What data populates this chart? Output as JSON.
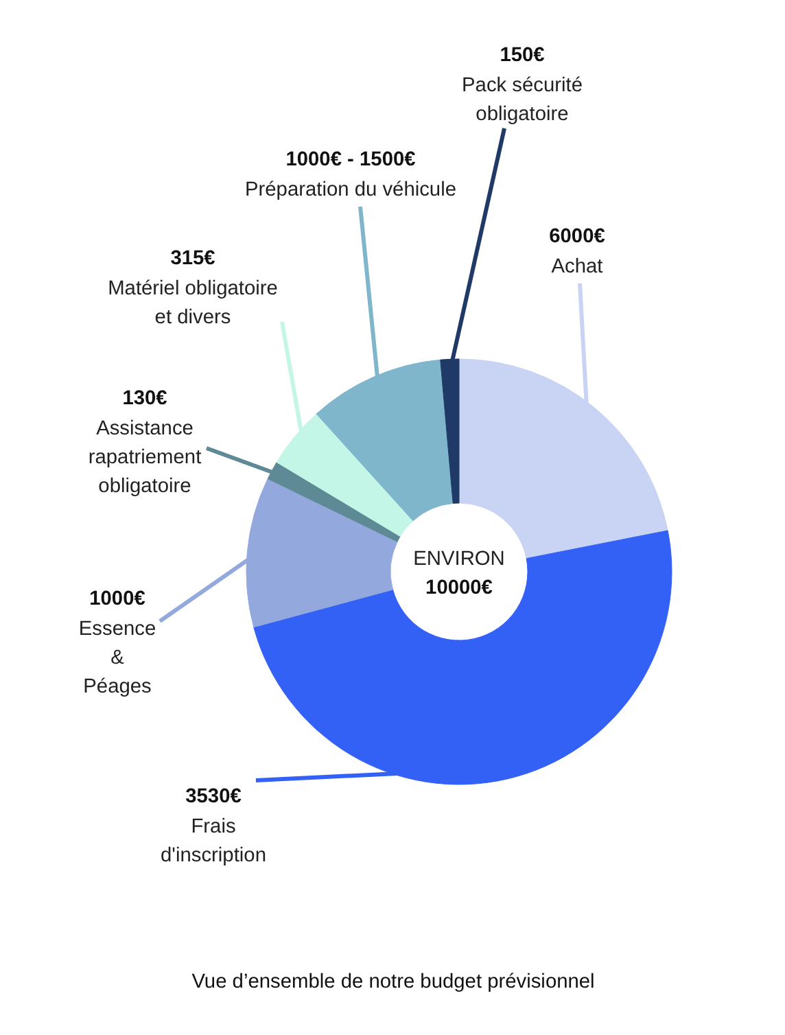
{
  "chart_data": {
    "type": "donut",
    "categories": [
      "6000€ Achat",
      "3530€ Frais d'inscription",
      "1000€ Essence & Péages",
      "130€ Assistance rapatriement obligatoire",
      "315€ Matériel obligatoire et divers",
      "1000€ - 1500€ Préparation du véhicule",
      "150€ Pack sécurité obligatoire"
    ],
    "values": [
      21.9,
      48.9,
      11.4,
      1.4,
      4.7,
      10.3,
      1.4
    ],
    "colors": [
      "#c9d3f3",
      "#3461f5",
      "#93a8dc",
      "#5e8a96",
      "#c4f6e8",
      "#7fb6cc",
      "#1f3a66"
    ],
    "annotations": [
      "ENVIRON 10000€",
      "Vue d’ensemble de notre budget prévisionnel"
    ]
  }
}
